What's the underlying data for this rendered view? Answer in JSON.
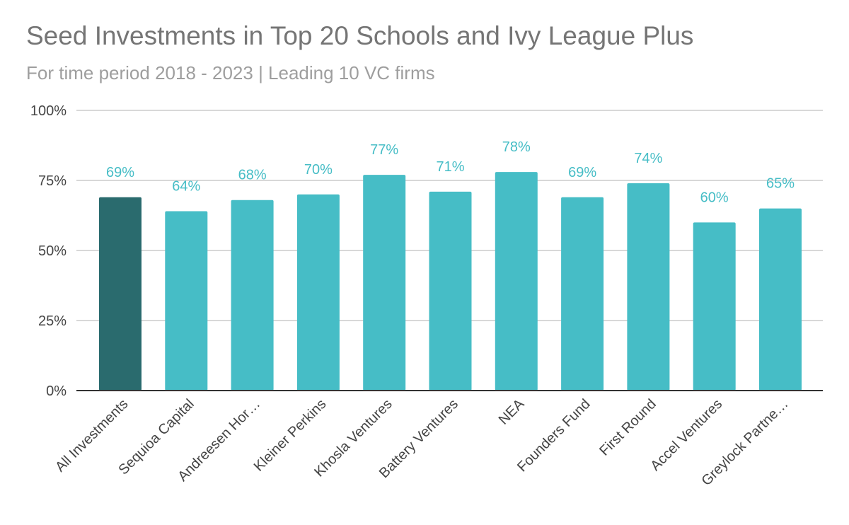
{
  "chart_data": {
    "type": "bar",
    "title": "Seed Investments in Top 20 Schools and Ivy League Plus",
    "subtitle": "For time period 2018 - 2023 | Leading 10 VC firms",
    "categories": [
      "All Investments",
      "Sequioa Capital",
      "Andreesen Hor…",
      "Kleiner Perkins",
      "Khosla Ventures",
      "Battery Ventures",
      "NEA",
      "Founders Fund",
      "First Round",
      "Accel Ventures",
      "Greylock Partne…"
    ],
    "values": [
      69,
      64,
      68,
      70,
      77,
      71,
      78,
      69,
      74,
      60,
      65
    ],
    "data_labels": [
      "69%",
      "64%",
      "68%",
      "70%",
      "77%",
      "71%",
      "78%",
      "69%",
      "74%",
      "60%",
      "65%"
    ],
    "ylim": [
      0,
      100
    ],
    "yticks": [
      0,
      25,
      50,
      75,
      100
    ],
    "ytick_labels": [
      "0%",
      "25%",
      "50%",
      "75%",
      "100%"
    ],
    "xlabel": "",
    "ylabel": "",
    "grid": true,
    "legend": "none",
    "colors": {
      "highlight_bar": "#2a6b6e",
      "bar": "#46bdc6",
      "data_label": "#46bdc6",
      "gridline": "#cccccc",
      "axis": "#333333"
    }
  }
}
